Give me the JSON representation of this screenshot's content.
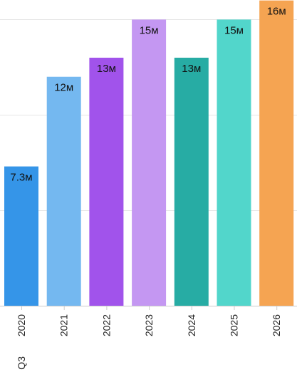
{
  "chart_data": {
    "type": "bar",
    "title": "",
    "xlabel": "",
    "ylabel": "",
    "categories": [
      "2020",
      "2021",
      "2022",
      "2023",
      "2024",
      "2025",
      "2026"
    ],
    "category_prefix": "Q3",
    "values": [
      7.3,
      12,
      13,
      15,
      13,
      15,
      16
    ],
    "value_labels": [
      "7.3м",
      "12м",
      "13м",
      "15м",
      "13м",
      "15м",
      "16м"
    ],
    "colors": [
      "#3595e8",
      "#74b8f0",
      "#a153eb",
      "#c497f2",
      "#27aca4",
      "#52d6cb",
      "#f5a452"
    ],
    "ylim": [
      0,
      15.8
    ],
    "gridlines": [
      5,
      10,
      15
    ],
    "grid": true,
    "legend": "none"
  }
}
